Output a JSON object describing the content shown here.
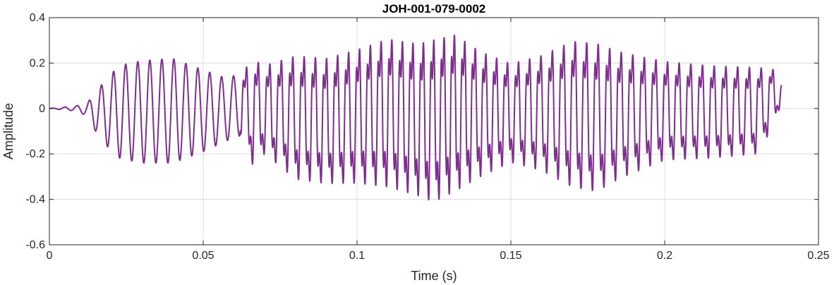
{
  "chart_data": {
    "type": "line",
    "title": "JOH-001-079-0002",
    "xlabel": "Time (s)",
    "ylabel": "Amplitude",
    "xlim": [
      0,
      0.25
    ],
    "ylim": [
      -0.6,
      0.4
    ],
    "xticks": [
      0,
      0.05,
      0.1,
      0.15,
      0.2,
      0.25
    ],
    "xtick_labels": [
      "0",
      "0.05",
      "0.1",
      "0.15",
      "0.2",
      "0.25"
    ],
    "yticks": [
      -0.6,
      -0.4,
      -0.2,
      0,
      0.2,
      0.4
    ],
    "ytick_labels": [
      "-0.6",
      "-0.4",
      "-0.2",
      "0",
      "0.2",
      "0.4"
    ],
    "grid": true,
    "series": [
      {
        "color": "#7e2f8e",
        "x_start": 0,
        "x_end": 0.238,
        "envelope": [
          {
            "t": 0.0,
            "upper": 0.0,
            "lower": 0.0
          },
          {
            "t": 0.008,
            "upper": 0.01,
            "lower": -0.01
          },
          {
            "t": 0.012,
            "upper": 0.02,
            "lower": -0.03
          },
          {
            "t": 0.015,
            "upper": 0.07,
            "lower": -0.1
          },
          {
            "t": 0.019,
            "upper": 0.14,
            "lower": -0.17
          },
          {
            "t": 0.023,
            "upper": 0.19,
            "lower": -0.22
          },
          {
            "t": 0.03,
            "upper": 0.21,
            "lower": -0.24
          },
          {
            "t": 0.04,
            "upper": 0.22,
            "lower": -0.24
          },
          {
            "t": 0.05,
            "upper": 0.17,
            "lower": -0.19
          },
          {
            "t": 0.058,
            "upper": 0.13,
            "lower": -0.14
          },
          {
            "t": 0.062,
            "upper": 0.16,
            "lower": -0.12
          },
          {
            "t": 0.066,
            "upper": 0.24,
            "lower": -0.27
          },
          {
            "t": 0.07,
            "upper": 0.21,
            "lower": -0.22
          },
          {
            "t": 0.08,
            "upper": 0.26,
            "lower": -0.34
          },
          {
            "t": 0.09,
            "upper": 0.25,
            "lower": -0.36
          },
          {
            "t": 0.1,
            "upper": 0.29,
            "lower": -0.36
          },
          {
            "t": 0.11,
            "upper": 0.34,
            "lower": -0.38
          },
          {
            "t": 0.12,
            "upper": 0.32,
            "lower": -0.42
          },
          {
            "t": 0.125,
            "upper": 0.34,
            "lower": -0.45
          },
          {
            "t": 0.132,
            "upper": 0.36,
            "lower": -0.4
          },
          {
            "t": 0.14,
            "upper": 0.28,
            "lower": -0.33
          },
          {
            "t": 0.15,
            "upper": 0.22,
            "lower": -0.26
          },
          {
            "t": 0.16,
            "upper": 0.26,
            "lower": -0.3
          },
          {
            "t": 0.17,
            "upper": 0.33,
            "lower": -0.38
          },
          {
            "t": 0.178,
            "upper": 0.32,
            "lower": -0.4
          },
          {
            "t": 0.185,
            "upper": 0.28,
            "lower": -0.34
          },
          {
            "t": 0.2,
            "upper": 0.23,
            "lower": -0.25
          },
          {
            "t": 0.215,
            "upper": 0.21,
            "lower": -0.24
          },
          {
            "t": 0.23,
            "upper": 0.2,
            "lower": -0.22
          },
          {
            "t": 0.235,
            "upper": 0.19,
            "lower": -0.1
          },
          {
            "t": 0.238,
            "upper": 0.12,
            "lower": 0.02
          }
        ],
        "pitch_hz": [
          {
            "t": 0.0,
            "f": 250
          },
          {
            "t": 0.062,
            "f": 260
          },
          {
            "t": 0.07,
            "f": 265
          },
          {
            "t": 0.13,
            "f": 300
          },
          {
            "t": 0.16,
            "f": 270
          },
          {
            "t": 0.238,
            "f": 260
          }
        ]
      }
    ]
  }
}
